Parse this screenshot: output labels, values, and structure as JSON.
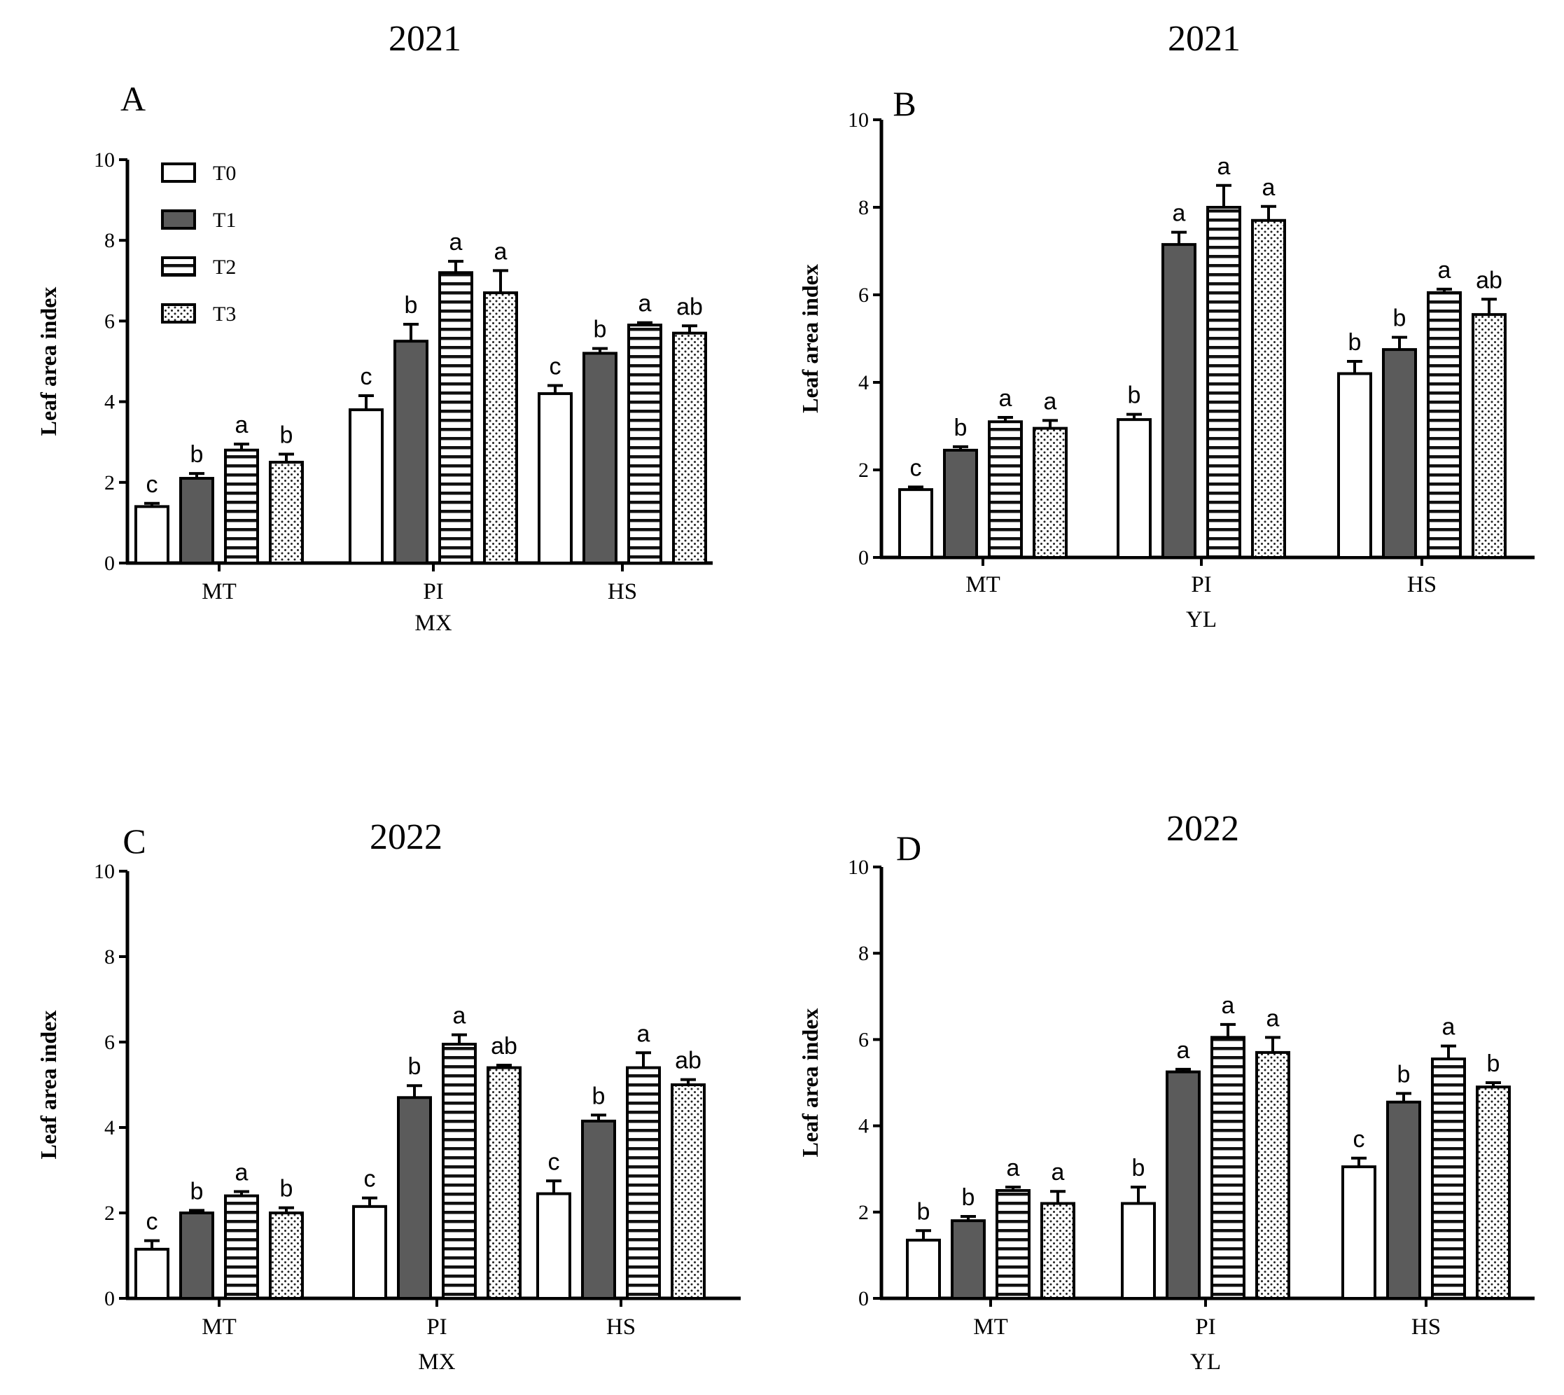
{
  "chart_data": [
    {
      "type": "bar",
      "panel": "A",
      "title": "2021",
      "xlabel": "MX",
      "ylabel": "Leaf area index",
      "ylim": [
        0,
        10
      ],
      "yticks": [
        "0",
        "2",
        "4",
        "6",
        "8",
        "10"
      ],
      "categories": [
        "MT",
        "PI",
        "HS"
      ],
      "legend": [
        "T0",
        "T1",
        "T2",
        "T3"
      ],
      "series": [
        {
          "name": "T0",
          "values": [
            1.4,
            3.8,
            4.2
          ],
          "errors": [
            0.08,
            0.35,
            0.2
          ],
          "letters": [
            "c",
            "c",
            "c"
          ]
        },
        {
          "name": "T1",
          "values": [
            2.1,
            5.5,
            5.2
          ],
          "errors": [
            0.12,
            0.42,
            0.12
          ],
          "letters": [
            "b",
            "b",
            "b"
          ]
        },
        {
          "name": "T2",
          "values": [
            2.8,
            7.2,
            5.9
          ],
          "errors": [
            0.15,
            0.28,
            0.06
          ],
          "letters": [
            "a",
            "a",
            "a"
          ]
        },
        {
          "name": "T3",
          "values": [
            2.5,
            6.7,
            5.7
          ],
          "errors": [
            0.2,
            0.55,
            0.18
          ],
          "letters": [
            "b",
            "a",
            "ab"
          ]
        }
      ]
    },
    {
      "type": "bar",
      "panel": "B",
      "title": "2021",
      "xlabel": "YL",
      "ylabel": "Leaf area index",
      "ylim": [
        0,
        10
      ],
      "yticks": [
        "0",
        "2",
        "4",
        "6",
        "8",
        "10"
      ],
      "categories": [
        "MT",
        "PI",
        "HS"
      ],
      "legend": [],
      "series": [
        {
          "name": "T0",
          "values": [
            1.55,
            3.15,
            4.2
          ],
          "errors": [
            0.06,
            0.12,
            0.28
          ],
          "letters": [
            "c",
            "b",
            "b"
          ]
        },
        {
          "name": "T1",
          "values": [
            2.45,
            7.15,
            4.75
          ],
          "errors": [
            0.08,
            0.28,
            0.28
          ],
          "letters": [
            "b",
            "a",
            "b"
          ]
        },
        {
          "name": "T2",
          "values": [
            3.1,
            8.0,
            6.05
          ],
          "errors": [
            0.1,
            0.5,
            0.08
          ],
          "letters": [
            "a",
            "a",
            "a"
          ]
        },
        {
          "name": "T3",
          "values": [
            2.95,
            7.7,
            5.55
          ],
          "errors": [
            0.18,
            0.32,
            0.35
          ],
          "letters": [
            "a",
            "a",
            "ab"
          ]
        }
      ]
    },
    {
      "type": "bar",
      "panel": "C",
      "title": "2022",
      "xlabel": "MX",
      "ylabel": "Leaf area index",
      "ylim": [
        0,
        10
      ],
      "yticks": [
        "0",
        "2",
        "4",
        "6",
        "8",
        "10"
      ],
      "categories": [
        "MT",
        "PI",
        "HS"
      ],
      "legend": [],
      "series": [
        {
          "name": "T0",
          "values": [
            1.15,
            2.15,
            2.45
          ],
          "errors": [
            0.2,
            0.2,
            0.3
          ],
          "letters": [
            "c",
            "c",
            "c"
          ]
        },
        {
          "name": "T1",
          "values": [
            2.0,
            4.7,
            4.15
          ],
          "errors": [
            0.06,
            0.28,
            0.14
          ],
          "letters": [
            "b",
            "b",
            "b"
          ]
        },
        {
          "name": "T2",
          "values": [
            2.4,
            5.95,
            5.4
          ],
          "errors": [
            0.1,
            0.22,
            0.35
          ],
          "letters": [
            "a",
            "a",
            "a"
          ]
        },
        {
          "name": "T3",
          "values": [
            2.0,
            5.4,
            5.0
          ],
          "errors": [
            0.12,
            0.06,
            0.12
          ],
          "letters": [
            "b",
            "ab",
            "ab"
          ]
        }
      ]
    },
    {
      "type": "bar",
      "panel": "D",
      "title": "2022",
      "xlabel": "YL",
      "ylabel": "Leaf area index",
      "ylim": [
        0,
        10
      ],
      "yticks": [
        "0",
        "2",
        "4",
        "6",
        "8",
        "10"
      ],
      "categories": [
        "MT",
        "PI",
        "HS"
      ],
      "legend": [],
      "series": [
        {
          "name": "T0",
          "values": [
            1.35,
            2.2,
            3.05
          ],
          "errors": [
            0.22,
            0.38,
            0.2
          ],
          "letters": [
            "b",
            "b",
            "c"
          ]
        },
        {
          "name": "T1",
          "values": [
            1.8,
            5.25,
            4.55
          ],
          "errors": [
            0.1,
            0.06,
            0.2
          ],
          "letters": [
            "b",
            "a",
            "b"
          ]
        },
        {
          "name": "T2",
          "values": [
            2.5,
            6.05,
            5.55
          ],
          "errors": [
            0.08,
            0.3,
            0.3
          ],
          "letters": [
            "a",
            "a",
            "a"
          ]
        },
        {
          "name": "T3",
          "values": [
            2.2,
            5.7,
            4.9
          ],
          "errors": [
            0.28,
            0.35,
            0.1
          ],
          "letters": [
            "a",
            "a",
            "b"
          ]
        }
      ]
    }
  ]
}
